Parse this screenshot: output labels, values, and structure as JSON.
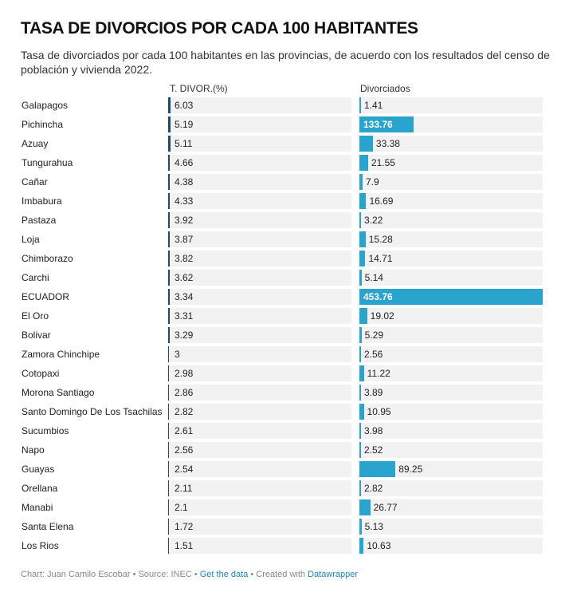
{
  "title": "TASA DE DIVORCIOS POR CADA 100 HABITANTES",
  "description": "Tasa de divorciados por cada 100 habitantes en las provincias, de acuerdo con los resultados del censo de población y vivienda 2022.",
  "footer": {
    "chart_by": "Chart: Juan Camilo Escobar",
    "source": "Source: INEC",
    "get_data": "Get the data",
    "created_with": "Created with",
    "tool": "Datawrapper",
    "separator": " • "
  },
  "colors": {
    "bar_rate": "#1d4e6e",
    "bar_count": "#28a4cf",
    "cell_bg": "#f2f2f2"
  },
  "chart_data": {
    "type": "table",
    "title": "TASA DE DIVORCIOS POR CADA 100 HABITANTES",
    "columns": [
      "",
      "T. DIVOR.(%)",
      "Divorciados"
    ],
    "categories": [
      "Galapagos",
      "Pichincha",
      "Azuay",
      "Tungurahua",
      "Cañar",
      "Imbabura",
      "Pastaza",
      "Loja",
      "Chimborazo",
      "Carchi",
      "ECUADOR",
      "El Oro",
      "Bolivar",
      "Zamora Chinchipe",
      "Cotopaxi",
      "Morona Santiago",
      "Santo Domingo De Los Tsachilas",
      "Sucumbios",
      "Napo",
      "Guayas",
      "Orellana",
      "Manabi",
      "Santa Elena",
      "Los Rios"
    ],
    "series": [
      {
        "name": "T. DIVOR.(%)",
        "values": [
          6.03,
          5.19,
          5.11,
          4.66,
          4.38,
          4.33,
          3.92,
          3.87,
          3.82,
          3.62,
          3.34,
          3.31,
          3.29,
          3,
          2.98,
          2.86,
          2.82,
          2.61,
          2.56,
          2.54,
          2.11,
          2.1,
          1.72,
          1.51
        ]
      },
      {
        "name": "Divorciados",
        "values": [
          1.41,
          133.76,
          33.38,
          21.55,
          7.9,
          16.69,
          3.22,
          15.28,
          14.71,
          5.14,
          453.76,
          19.02,
          5.29,
          2.56,
          11.22,
          3.89,
          10.95,
          3.98,
          2.52,
          89.25,
          2.82,
          26.77,
          5.13,
          10.63
        ]
      }
    ]
  }
}
